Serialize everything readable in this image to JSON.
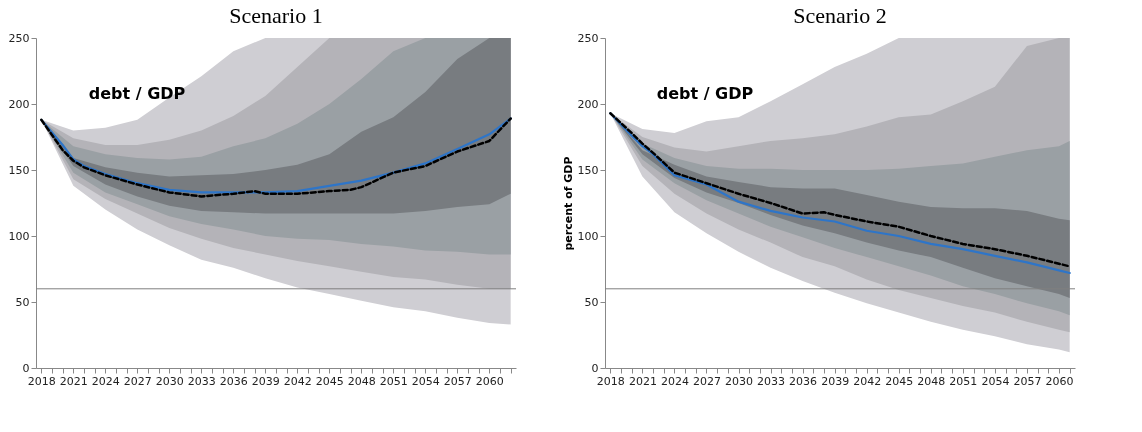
{
  "chart_data": [
    {
      "type": "area",
      "title": "Scenario 1",
      "annotations": [
        "debt / GDP"
      ],
      "grid": false,
      "xlim": [
        2017.5,
        2062.5
      ],
      "ylim": [
        0,
        250
      ],
      "yticks": [
        0,
        50,
        100,
        150,
        200,
        250
      ],
      "xticks": [
        2018,
        {
          "value": 2019,
          "label": null
        },
        {
          "value": 2020,
          "label": null
        },
        2021,
        {
          "value": 2022,
          "label": null
        },
        {
          "value": 2023,
          "label": null
        },
        2024,
        {
          "value": 2025,
          "label": null
        },
        {
          "value": 2026,
          "label": null
        },
        2027,
        {
          "value": 2028,
          "label": null
        },
        {
          "value": 2029,
          "label": null
        },
        2030,
        {
          "value": 2031,
          "label": null
        },
        {
          "value": 2032,
          "label": null
        },
        2033,
        {
          "value": 2034,
          "label": null
        },
        {
          "value": 2035,
          "label": null
        },
        2036,
        {
          "value": 2037,
          "label": null
        },
        {
          "value": 2038,
          "label": null
        },
        2039,
        {
          "value": 2040,
          "label": null
        },
        {
          "value": 2041,
          "label": null
        },
        2042,
        {
          "value": 2043,
          "label": null
        },
        {
          "value": 2044,
          "label": null
        },
        2045,
        {
          "value": 2046,
          "label": null
        },
        {
          "value": 2047,
          "label": null
        },
        2048,
        {
          "value": 2049,
          "label": null
        },
        {
          "value": 2050,
          "label": null
        },
        2051,
        {
          "value": 2052,
          "label": null
        },
        {
          "value": 2053,
          "label": null
        },
        2054,
        {
          "value": 2055,
          "label": null
        },
        {
          "value": 2056,
          "label": null
        },
        2057,
        {
          "value": 2058,
          "label": null
        },
        {
          "value": 2059,
          "label": null
        },
        2060,
        {
          "value": 2061,
          "label": null
        },
        {
          "value": 2062,
          "label": null
        }
      ],
      "x": [
        2018,
        2021,
        2024,
        2027,
        2030,
        2033,
        2036,
        2039,
        2042,
        2045,
        2048,
        2051,
        2054,
        2057,
        2060,
        2062
      ],
      "ref_lines": [
        {
          "axis": "y",
          "value": 60,
          "color": "#7f7f7f"
        }
      ],
      "series": [
        {
          "color": "#cfced3",
          "values": [
            null,
            null,
            null,
            null,
            null,
            null,
            null,
            null,
            null,
            null,
            null,
            null,
            null,
            null,
            null,
            null
          ],
          "lower": [
            188,
            138,
            120,
            105,
            93,
            82,
            76,
            68,
            61,
            56,
            51,
            46,
            43,
            38,
            34,
            33
          ],
          "upper": [
            188,
            180,
            182,
            188,
            205,
            221,
            240,
            250,
            250,
            250,
            250,
            250,
            250,
            250,
            250,
            250
          ]
        },
        {
          "color": "#b4b3b8",
          "values": [
            null,
            null,
            null,
            null,
            null,
            null,
            null,
            null,
            null,
            null,
            null,
            null,
            null,
            null,
            null,
            null
          ],
          "lower": [
            188,
            143,
            128,
            117,
            106,
            98,
            91,
            86,
            81,
            77,
            73,
            69,
            67,
            63,
            60,
            60
          ],
          "upper": [
            188,
            174,
            169,
            169,
            173,
            180,
            191,
            206,
            228,
            250,
            250,
            250,
            250,
            250,
            250,
            250
          ]
        },
        {
          "color": "#9aa0a4",
          "values": [
            null,
            null,
            null,
            null,
            null,
            null,
            null,
            null,
            null,
            null,
            null,
            null,
            null,
            null,
            null,
            null
          ],
          "lower": [
            188,
            148,
            133,
            124,
            115,
            109,
            105,
            100,
            98,
            97,
            94,
            92,
            89,
            88,
            86,
            86
          ],
          "upper": [
            188,
            168,
            162,
            159,
            158,
            160,
            168,
            174,
            185,
            200,
            219,
            240,
            250,
            250,
            250,
            250
          ]
        },
        {
          "color": "#787c80",
          "values": [
            null,
            null,
            null,
            null,
            null,
            null,
            null,
            null,
            null,
            null,
            null,
            null,
            null,
            null,
            null,
            null
          ],
          "lower": [
            188,
            153,
            139,
            130,
            123,
            119,
            118,
            117,
            117,
            117,
            117,
            117,
            119,
            122,
            124,
            132
          ],
          "upper": [
            188,
            159,
            152,
            148,
            145,
            146,
            147,
            150,
            154,
            162,
            179,
            190,
            209,
            234,
            250,
            250
          ]
        },
        {
          "type": "line",
          "color": "#2e75c8",
          "line_style": "solid",
          "x": [
            2018,
            2020,
            2021,
            2022,
            2024,
            2027,
            2030,
            2033,
            2036,
            2039,
            2042,
            2045,
            2048,
            2051,
            2054,
            2057,
            2060,
            2062
          ],
          "values": [
            188,
            169,
            158,
            153,
            147,
            140,
            135,
            133,
            133,
            133,
            134,
            138,
            142,
            148,
            155,
            166,
            177,
            189
          ]
        },
        {
          "type": "line",
          "color": "#000000",
          "line_style": "dashed",
          "x": [
            2018,
            2020,
            2021,
            2022,
            2024,
            2027,
            2030,
            2033,
            2036,
            2038,
            2039,
            2042,
            2045,
            2047,
            2048,
            2051,
            2054,
            2057,
            2060,
            2062
          ],
          "values": [
            188,
            165,
            157,
            152,
            146,
            139,
            133,
            130,
            132,
            134,
            132,
            132,
            134,
            135,
            137,
            148,
            153,
            164,
            172,
            189
          ]
        }
      ]
    },
    {
      "type": "area",
      "title": "Scenario 2",
      "ylabel": "percent of GDP",
      "annotations": [
        "debt / GDP"
      ],
      "grid": false,
      "xlim": [
        2017.5,
        2061.5
      ],
      "ylim": [
        0,
        250
      ],
      "yticks": [
        0,
        50,
        100,
        150,
        200,
        250
      ],
      "xticks": [
        2018,
        {
          "value": 2019,
          "label": null
        },
        {
          "value": 2020,
          "label": null
        },
        2021,
        {
          "value": 2022,
          "label": null
        },
        {
          "value": 2023,
          "label": null
        },
        2024,
        {
          "value": 2025,
          "label": null
        },
        {
          "value": 2026,
          "label": null
        },
        2027,
        {
          "value": 2028,
          "label": null
        },
        {
          "value": 2029,
          "label": null
        },
        2030,
        {
          "value": 2031,
          "label": null
        },
        {
          "value": 2032,
          "label": null
        },
        2033,
        {
          "value": 2034,
          "label": null
        },
        {
          "value": 2035,
          "label": null
        },
        2036,
        {
          "value": 2037,
          "label": null
        },
        {
          "value": 2038,
          "label": null
        },
        2039,
        {
          "value": 2040,
          "label": null
        },
        {
          "value": 2041,
          "label": null
        },
        2042,
        {
          "value": 2043,
          "label": null
        },
        {
          "value": 2044,
          "label": null
        },
        2045,
        {
          "value": 2046,
          "label": null
        },
        {
          "value": 2047,
          "label": null
        },
        2048,
        {
          "value": 2049,
          "label": null
        },
        {
          "value": 2050,
          "label": null
        },
        2051,
        {
          "value": 2052,
          "label": null
        },
        {
          "value": 2053,
          "label": null
        },
        2054,
        {
          "value": 2055,
          "label": null
        },
        {
          "value": 2056,
          "label": null
        },
        2057,
        {
          "value": 2058,
          "label": null
        },
        {
          "value": 2059,
          "label": null
        },
        2060,
        {
          "value": 2061,
          "label": null
        }
      ],
      "x": [
        2018,
        2021,
        2024,
        2027,
        2030,
        2033,
        2036,
        2039,
        2042,
        2045,
        2048,
        2051,
        2054,
        2057,
        2060,
        2061
      ],
      "ref_lines": [
        {
          "axis": "y",
          "value": 60,
          "color": "#7f7f7f"
        }
      ],
      "series": [
        {
          "color": "#cfced3",
          "values": [
            null,
            null,
            null,
            null,
            null,
            null,
            null,
            null,
            null,
            null,
            null,
            null,
            null,
            null,
            null,
            null
          ],
          "lower": [
            193,
            145,
            118,
            102,
            88,
            76,
            66,
            57,
            49,
            42,
            35,
            29,
            24,
            18,
            14,
            12
          ],
          "upper": [
            193,
            181,
            178,
            187,
            190,
            202,
            215,
            228,
            238,
            250,
            250,
            250,
            250,
            250,
            250,
            250
          ]
        },
        {
          "color": "#b4b3b8",
          "values": [
            null,
            null,
            null,
            null,
            null,
            null,
            null,
            null,
            null,
            null,
            null,
            null,
            null,
            null,
            null,
            null
          ],
          "lower": [
            193,
            153,
            132,
            117,
            105,
            95,
            84,
            77,
            67,
            59,
            53,
            47,
            42,
            35,
            29,
            27
          ],
          "upper": [
            193,
            175,
            167,
            164,
            168,
            172,
            174,
            177,
            183,
            190,
            192,
            202,
            213,
            244,
            250,
            250
          ]
        },
        {
          "color": "#9aa0a4",
          "values": [
            null,
            null,
            null,
            null,
            null,
            null,
            null,
            null,
            null,
            null,
            null,
            null,
            null,
            null,
            null,
            null
          ],
          "lower": [
            193,
            158,
            140,
            127,
            117,
            107,
            99,
            91,
            84,
            77,
            70,
            62,
            56,
            49,
            43,
            40
          ],
          "upper": [
            193,
            170,
            159,
            153,
            151,
            151,
            150,
            150,
            150,
            151,
            153,
            155,
            160,
            165,
            168,
            172
          ]
        },
        {
          "color": "#787c80",
          "values": [
            null,
            null,
            null,
            null,
            null,
            null,
            null,
            null,
            null,
            null,
            null,
            null,
            null,
            null,
            null,
            null
          ],
          "lower": [
            193,
            162,
            144,
            133,
            125,
            116,
            108,
            102,
            95,
            89,
            84,
            76,
            68,
            62,
            56,
            53
          ],
          "upper": [
            193,
            165,
            154,
            145,
            141,
            137,
            136,
            136,
            131,
            126,
            122,
            121,
            121,
            119,
            113,
            112
          ]
        },
        {
          "type": "line",
          "color": "#2e75c8",
          "line_style": "solid",
          "x": [
            2018,
            2020,
            2021,
            2022,
            2024,
            2027,
            2030,
            2033,
            2036,
            2039,
            2042,
            2045,
            2048,
            2051,
            2054,
            2057,
            2060,
            2061
          ],
          "values": [
            193,
            176,
            168,
            162,
            146,
            139,
            126,
            119,
            114,
            111,
            104,
            100,
            94,
            90,
            85,
            80,
            74,
            72
          ]
        },
        {
          "type": "line",
          "color": "#000000",
          "line_style": "dashed",
          "x": [
            2018,
            2020,
            2021,
            2022,
            2024,
            2027,
            2030,
            2033,
            2036,
            2038,
            2039,
            2042,
            2045,
            2048,
            2051,
            2054,
            2057,
            2060,
            2061
          ],
          "values": [
            193,
            178,
            170,
            163,
            148,
            140,
            132,
            125,
            117,
            118,
            116,
            111,
            107,
            100,
            94,
            90,
            85,
            79,
            77
          ]
        }
      ]
    }
  ]
}
